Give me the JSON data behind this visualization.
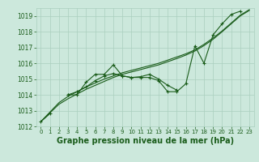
{
  "title": "Graphe pression niveau de la mer (hPa)",
  "x_hours": [
    0,
    1,
    2,
    3,
    4,
    5,
    6,
    7,
    8,
    9,
    10,
    11,
    12,
    13,
    14,
    15,
    16,
    17,
    18,
    19,
    20,
    21,
    22,
    23
  ],
  "line1": [
    1012.3,
    1012.8,
    null,
    1014.0,
    1014.0,
    1014.8,
    1015.3,
    1015.3,
    1015.9,
    1015.2,
    1015.1,
    1015.1,
    1015.1,
    1014.9,
    1014.2,
    1014.2,
    1014.7,
    1017.1,
    1016.0,
    1017.8,
    1018.5,
    1019.1,
    1019.3,
    null
  ],
  "line2_x": [
    3,
    4,
    5,
    6,
    7,
    8,
    9,
    10,
    11,
    12,
    13,
    14,
    15
  ],
  "line2_y": [
    1014.0,
    1014.2,
    1014.5,
    1014.9,
    1015.2,
    1015.35,
    1015.2,
    1015.1,
    1015.15,
    1015.3,
    1015.0,
    1014.6,
    1014.3
  ],
  "line3_smooth": [
    1012.3,
    1012.9,
    1013.5,
    1013.9,
    1014.2,
    1014.5,
    1014.75,
    1015.0,
    1015.2,
    1015.4,
    1015.55,
    1015.7,
    1015.85,
    1016.0,
    1016.2,
    1016.4,
    1016.6,
    1016.85,
    1017.2,
    1017.6,
    1018.05,
    1018.55,
    1019.05,
    1019.4
  ],
  "line4_smooth": [
    1012.3,
    1012.85,
    1013.4,
    1013.75,
    1014.05,
    1014.35,
    1014.6,
    1014.85,
    1015.1,
    1015.3,
    1015.45,
    1015.6,
    1015.75,
    1015.9,
    1016.1,
    1016.3,
    1016.52,
    1016.78,
    1017.12,
    1017.52,
    1018.0,
    1018.5,
    1019.0,
    1019.35
  ],
  "ylim": [
    1012,
    1019.5
  ],
  "yticks": [
    1012,
    1013,
    1014,
    1015,
    1016,
    1017,
    1018,
    1019
  ],
  "xticks": [
    0,
    1,
    2,
    3,
    4,
    5,
    6,
    7,
    8,
    9,
    10,
    11,
    12,
    13,
    14,
    15,
    16,
    17,
    18,
    19,
    20,
    21,
    22,
    23
  ],
  "line_color": "#1a5c1a",
  "bg_color": "#cce8dc",
  "grid_color": "#aacfbe",
  "title_color": "#1a5c1a",
  "title_fontsize": 7.0,
  "tick_fontsize": 5.5,
  "xtick_fontsize": 5.0
}
